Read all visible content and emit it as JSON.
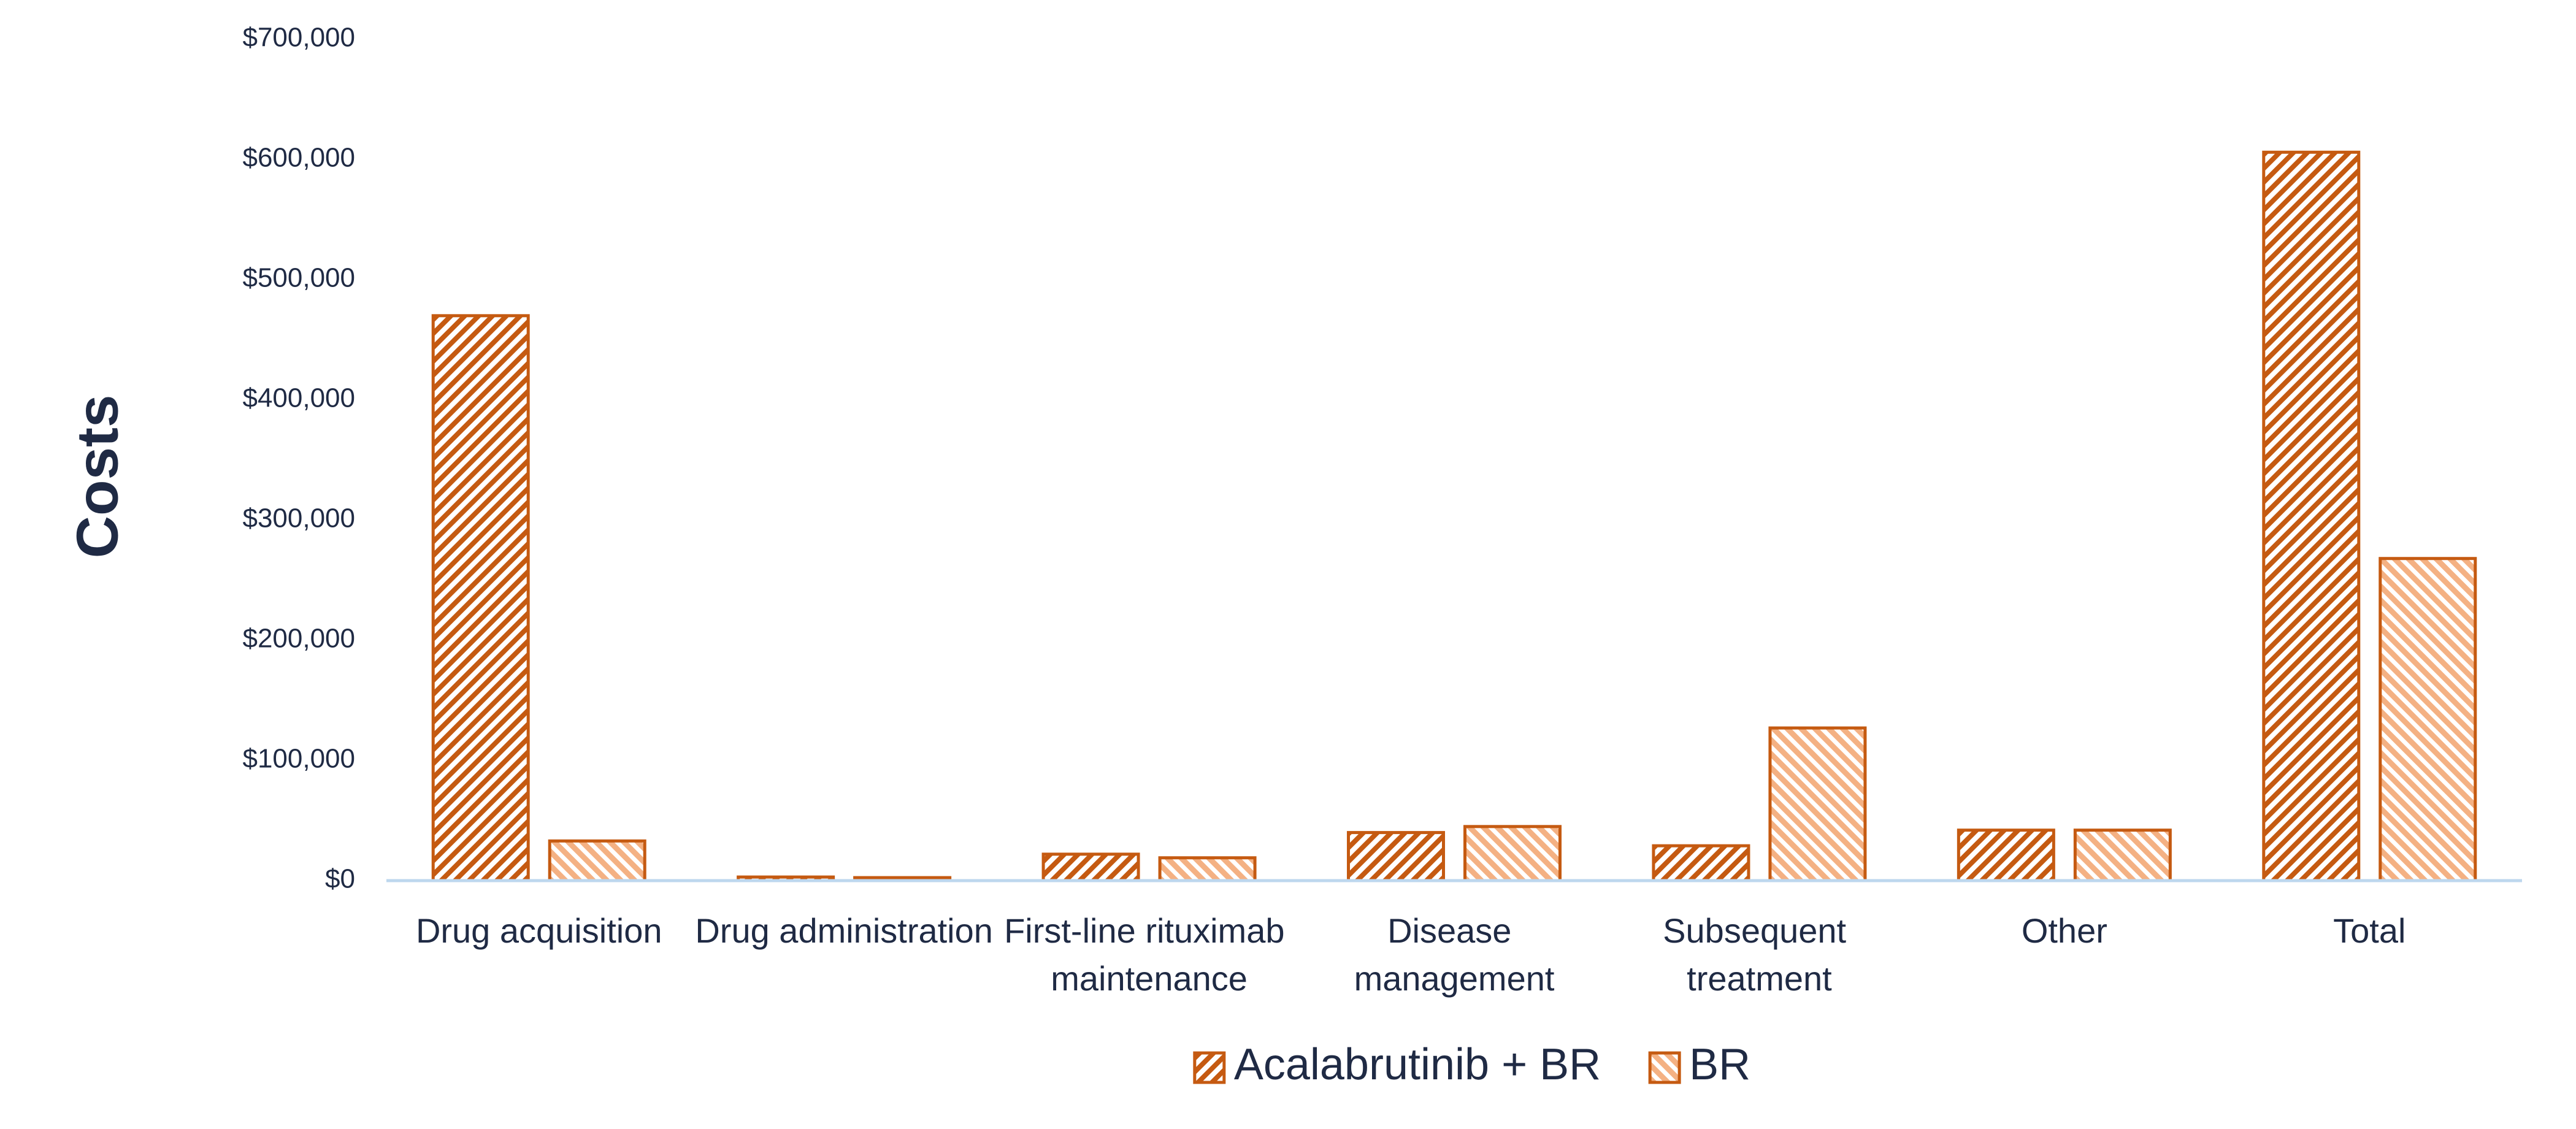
{
  "chart_data": {
    "type": "bar",
    "y_label": "Costs",
    "categories": [
      "Drug acquisition",
      "Drug administration",
      "First-line rituximab maintenance",
      "Disease management",
      "Subsequent treatment",
      "Other",
      "Total"
    ],
    "series": [
      {
        "name": "Acalabrutinib + BR",
        "color": "#c55a11",
        "values": [
          470000,
          3000,
          22000,
          40000,
          29000,
          42000,
          606000
        ]
      },
      {
        "name": "BR",
        "color": "#f4b183",
        "values": [
          33000,
          2500,
          19000,
          45000,
          127000,
          42000,
          268000
        ]
      }
    ],
    "ylim": [
      0,
      700000
    ],
    "yticks": [
      {
        "value": 0,
        "label": "$0"
      },
      {
        "value": 100000,
        "label": "$100,000"
      },
      {
        "value": 200000,
        "label": "$200,000"
      },
      {
        "value": 300000,
        "label": "$300,000"
      },
      {
        "value": 400000,
        "label": "$400,000"
      },
      {
        "value": 500000,
        "label": "$500,000"
      },
      {
        "value": 600000,
        "label": "$600,000"
      },
      {
        "value": 700000,
        "label": "$700,000"
      }
    ],
    "grid": false,
    "legend": "bottom"
  }
}
